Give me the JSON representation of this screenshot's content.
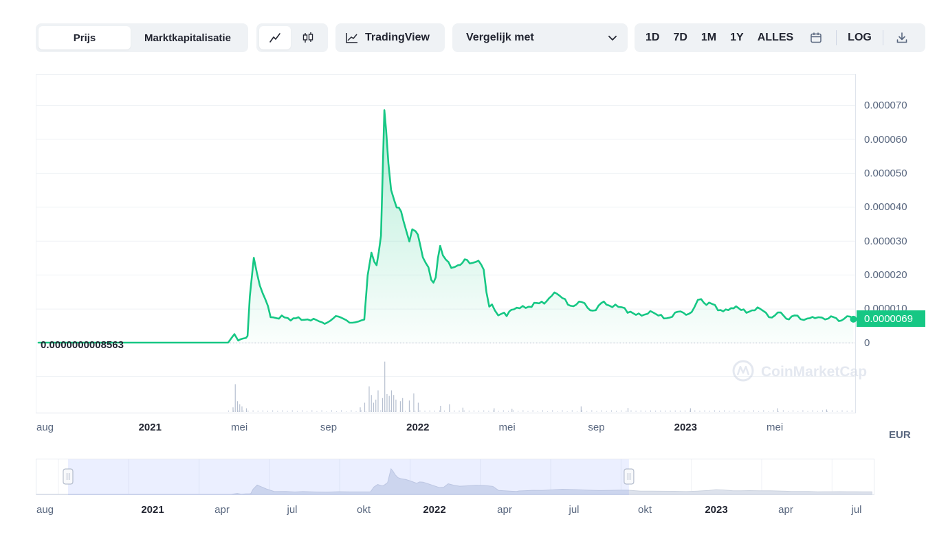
{
  "toolbar": {
    "tab_price": "Prijs",
    "tab_marketcap": "Marktkapitalisatie",
    "line_icon": "line-chart-icon",
    "candle_icon": "candlestick-icon",
    "tradingview": "TradingView",
    "compare": "Vergelijk met",
    "ranges": [
      "1D",
      "7D",
      "1M",
      "1Y",
      "ALLES"
    ],
    "calendar_icon": "calendar-icon",
    "log": "LOG",
    "download_icon": "download-icon"
  },
  "colors": {
    "accent": "#16c784",
    "grid": "#eff2f5",
    "axis_text": "#58667e"
  },
  "chart_data": {
    "type": "area",
    "currency": "EUR",
    "current_price_label": "0.0000069",
    "start_price_label": "0.0000000008563",
    "watermark": "CoinMarketCap",
    "y_ticks": [
      "0.000070",
      "0.000060",
      "0.000050",
      "0.000040",
      "0.000030",
      "0.000020",
      "0.000010",
      "0"
    ],
    "ylim": [
      0,
      7e-05
    ],
    "x_ticks": [
      {
        "label": "aug",
        "bold": false,
        "t": 0
      },
      {
        "label": "2021",
        "bold": true,
        "t": 5
      },
      {
        "label": "mei",
        "bold": false,
        "t": 9
      },
      {
        "label": "sep",
        "bold": false,
        "t": 13
      },
      {
        "label": "2022",
        "bold": true,
        "t": 17
      },
      {
        "label": "mei",
        "bold": false,
        "t": 21
      },
      {
        "label": "sep",
        "bold": false,
        "t": 25
      },
      {
        "label": "2023",
        "bold": true,
        "t": 29
      },
      {
        "label": "mei",
        "bold": false,
        "t": 33
      }
    ],
    "t_range": [
      0,
      36.6
    ],
    "series": [
      {
        "t": [
          4.4,
          8.5,
          8.78,
          8.95,
          9.15,
          9.3,
          9.37,
          9.47,
          9.65,
          10.05,
          10.4,
          10.9,
          11.3,
          11.65,
          12.2,
          12.7,
          13.2,
          13.8,
          14.6,
          14.75,
          14.92,
          15.05,
          15.15,
          15.35,
          15.5,
          15.58,
          15.68,
          15.8,
          15.95,
          16.15,
          16.35,
          16.5,
          16.62,
          16.75,
          16.9,
          17.1,
          17.35,
          17.6,
          17.8,
          18.0,
          18.25,
          18.5,
          18.8,
          19.0,
          19.2,
          19.6,
          19.95,
          20.2,
          20.45,
          20.75,
          20.98,
          21.1,
          21.3,
          21.7,
          22.1,
          22.55,
          23.0,
          23.6,
          24.1,
          24.6,
          25.1,
          25.45,
          25.85,
          26.4,
          26.9,
          27.3,
          27.9,
          28.4,
          28.9,
          29.4,
          29.7,
          30.05,
          30.45,
          30.8,
          31.15,
          31.6,
          32.1,
          32.6,
          33.0,
          33.4,
          33.75,
          34.15,
          34.45,
          34.8,
          35.1,
          35.4,
          35.75,
          36.1,
          36.52
        ],
        "v": [
          0.0,
          0.0,
          0.0025,
          0.0006,
          0.0012,
          0.0014,
          0.002,
          0.0136,
          0.025,
          0.0145,
          0.0075,
          0.008,
          0.0065,
          0.0075,
          0.0065,
          0.006,
          0.0071,
          0.0066,
          0.0068,
          0.0198,
          0.0265,
          0.0238,
          0.0228,
          0.0315,
          0.0685,
          0.0625,
          0.0528,
          0.045,
          0.0418,
          0.0398,
          0.036,
          0.0325,
          0.0298,
          0.0334,
          0.0328,
          0.029,
          0.0235,
          0.0185,
          0.0192,
          0.0285,
          0.0245,
          0.022,
          0.0228,
          0.0235,
          0.0244,
          0.0238,
          0.0215,
          0.0106,
          0.0095,
          0.0085,
          0.0078,
          0.0092,
          0.0098,
          0.0108,
          0.0105,
          0.0121,
          0.0138,
          0.0128,
          0.0112,
          0.0103,
          0.0109,
          0.0112,
          0.0112,
          0.0088,
          0.0086,
          0.0085,
          0.0082,
          0.0076,
          0.0088,
          0.0105,
          0.0128,
          0.0118,
          0.0095,
          0.0098,
          0.0101,
          0.0098,
          0.0095,
          0.0088,
          0.008,
          0.0079,
          0.0077,
          0.0069,
          0.0071,
          0.0072,
          0.0074,
          0.0071,
          0.0072,
          0.007,
          0.0069
        ]
      }
    ],
    "volume": {
      "t": [
        8.7,
        8.8,
        8.9,
        9.0,
        9.1,
        9.3,
        14.4,
        14.6,
        14.8,
        14.9,
        15.0,
        15.1,
        15.2,
        15.4,
        15.5,
        15.6,
        15.7,
        15.8,
        15.9,
        16.0,
        16.2,
        16.3,
        16.6,
        16.8,
        17.0,
        18.0,
        18.4,
        19.0,
        20.4,
        21.2,
        24.3,
        26.4,
        29.2,
        33.1,
        35.3
      ],
      "v": [
        0.15,
        0.9,
        0.35,
        0.25,
        0.18,
        0.12,
        0.15,
        0.3,
        0.83,
        0.55,
        0.3,
        0.4,
        0.7,
        0.45,
        1.63,
        0.58,
        0.52,
        0.7,
        0.55,
        0.4,
        0.35,
        0.45,
        0.37,
        0.6,
        0.3,
        0.2,
        0.25,
        0.14,
        0.12,
        0.1,
        0.18,
        0.13,
        0.12,
        0.12,
        0.08
      ]
    }
  },
  "navigator": {
    "x_ticks": [
      {
        "label": "aug",
        "bold": false
      },
      {
        "label": "2021",
        "bold": true
      },
      {
        "label": "apr",
        "bold": false
      },
      {
        "label": "jul",
        "bold": false
      },
      {
        "label": "okt",
        "bold": false
      },
      {
        "label": "2022",
        "bold": true
      },
      {
        "label": "apr",
        "bold": false
      },
      {
        "label": "jul",
        "bold": false
      },
      {
        "label": "okt",
        "bold": false
      },
      {
        "label": "2023",
        "bold": true
      },
      {
        "label": "apr",
        "bold": false
      },
      {
        "label": "jul",
        "bold": false
      }
    ],
    "selection_start_t": 0.6,
    "selection_end_t": 25.9
  }
}
